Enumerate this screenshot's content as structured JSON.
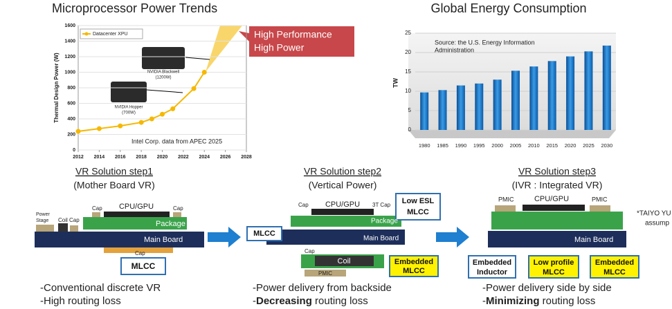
{
  "chart_data": [
    {
      "type": "line",
      "title": "Microprocessor Power Trends",
      "ylabel": "Thermal Design Power (W)",
      "xlim": [
        2012,
        2028
      ],
      "xticks": [
        2012,
        2014,
        2016,
        2018,
        2020,
        2022,
        2024,
        2026,
        2028
      ],
      "ylim": [
        0,
        1600
      ],
      "yticks": [
        0,
        200,
        400,
        600,
        800,
        1000,
        1200,
        1400,
        1600
      ],
      "series": [
        {
          "name": "Datacenter XPU",
          "color": "#f5b800",
          "x": [
            2012,
            2014,
            2016,
            2018,
            2019,
            2020,
            2021,
            2023,
            2024
          ],
          "values": [
            240,
            275,
            310,
            355,
            400,
            460,
            530,
            790,
            1000
          ]
        }
      ],
      "legend": "upper left",
      "annotations": [
        "Intel Corp. data from APEC 2025",
        "NVIDIA Blackwell",
        "(1200W)",
        "NVIDIA Hopper",
        "(700W)"
      ],
      "callout": [
        "High Performance",
        "High Power"
      ]
    },
    {
      "type": "bar",
      "title": "Global Energy Consumption",
      "ylabel": "TW",
      "categories": [
        "1980",
        "1985",
        "1990",
        "1995",
        "2000",
        "2005",
        "2010",
        "2015",
        "2020",
        "2025",
        "2030"
      ],
      "values": [
        9.7,
        10.3,
        11.5,
        12,
        13,
        15.3,
        16.4,
        17.8,
        19,
        20.3,
        21.8
      ],
      "color": "#1f7fd0",
      "ylim": [
        0,
        25
      ],
      "yticks": [
        0,
        5,
        10,
        15,
        20,
        25
      ],
      "source": [
        "Source: the U.S. Energy Information",
        "Administration"
      ]
    }
  ],
  "diagram": {
    "steps": [
      {
        "title": "VR Solution step1",
        "subtitle": "(Mother Board VR)",
        "labels": [
          "Power",
          "Stage",
          "Coil",
          "Cap",
          "Cap",
          "CPU/GPU",
          "Cap",
          "Package",
          "Main Board",
          "Cap",
          "MLCC"
        ],
        "bullets": [
          {
            "prefix": "-Conventional discrete VR",
            "bold": "",
            "text": ""
          },
          {
            "prefix": "-High routing loss",
            "bold": "",
            "text": ""
          }
        ]
      },
      {
        "title": "VR Solution step2",
        "subtitle": "(Vertical Power)",
        "labels": [
          "Cap",
          "CPU/GPU",
          "3T Cap",
          "Low ESL",
          "MLCC",
          "Package",
          "MLCC",
          "Main Board",
          "Coil",
          "Cap",
          "PMIC",
          "Embedded",
          "MLCC"
        ],
        "bullets": [
          {
            "prefix": "-Power delivery from backside",
            "bold": "",
            "text": ""
          },
          {
            "prefix": "-",
            "bold": "Decreasing",
            "text": " routing loss"
          }
        ]
      },
      {
        "title": "VR Solution step3",
        "subtitle": "(IVR : Integrated VR)",
        "labels": [
          "PMIC",
          "CPU/GPU",
          "PMIC",
          "Main Board",
          "Embedded",
          "Inductor",
          "Low profile",
          "MLCC",
          "Embedded",
          "MLCC"
        ],
        "bullets": [
          {
            "prefix": "-Power delivery side by side",
            "bold": "",
            "text": ""
          },
          {
            "prefix": "-",
            "bold": "Minimizing",
            "text": " routing loss"
          }
        ]
      }
    ],
    "footnote": [
      "*TAIYO YU",
      "assump"
    ]
  }
}
